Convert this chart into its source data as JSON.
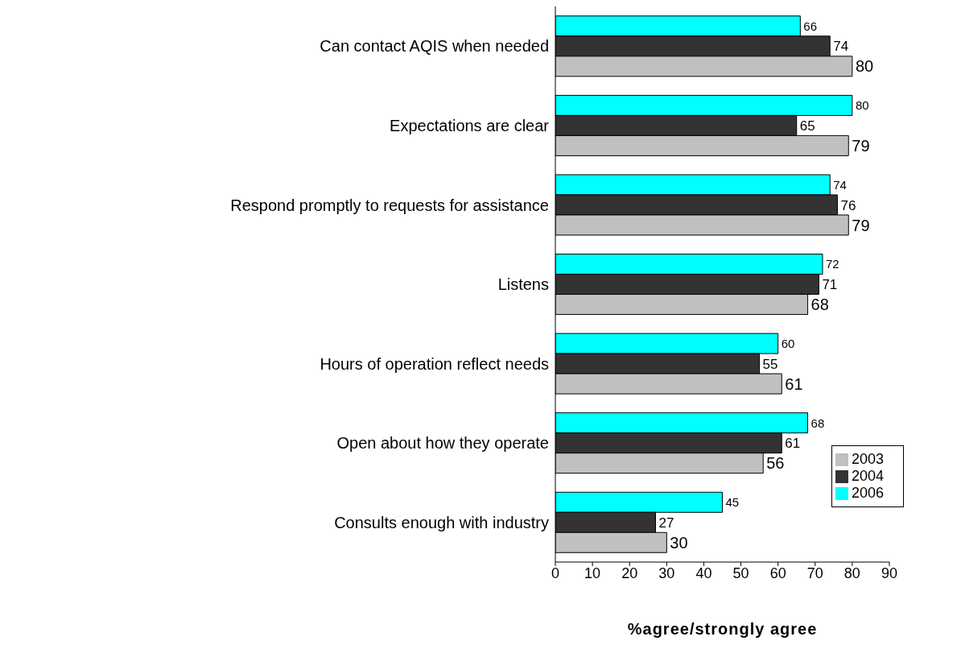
{
  "chart_data": {
    "type": "bar",
    "orientation": "horizontal",
    "xlabel": "%agree/strongly agree",
    "categories": [
      "Can contact AQIS when needed",
      "Expectations are clear",
      "Respond promptly to requests for assistance",
      "Listens",
      "Hours of operation reflect needs",
      "Open about how they operate",
      "Consults enough with industry"
    ],
    "series": [
      {
        "name": "2006",
        "color": "#00ffff",
        "values": [
          66,
          80,
          74,
          72,
          60,
          68,
          45
        ]
      },
      {
        "name": "2004",
        "color": "#333333",
        "values": [
          74,
          65,
          76,
          71,
          55,
          61,
          27
        ]
      },
      {
        "name": "2003",
        "color": "#c0c0c0",
        "values": [
          80,
          79,
          79,
          68,
          61,
          56,
          30
        ]
      }
    ],
    "xlim": [
      0,
      90
    ],
    "xticks": [
      0,
      10,
      20,
      30,
      40,
      50,
      60,
      70,
      80,
      90
    ],
    "data_labels": true,
    "legend": "bottom right",
    "grid": false
  }
}
